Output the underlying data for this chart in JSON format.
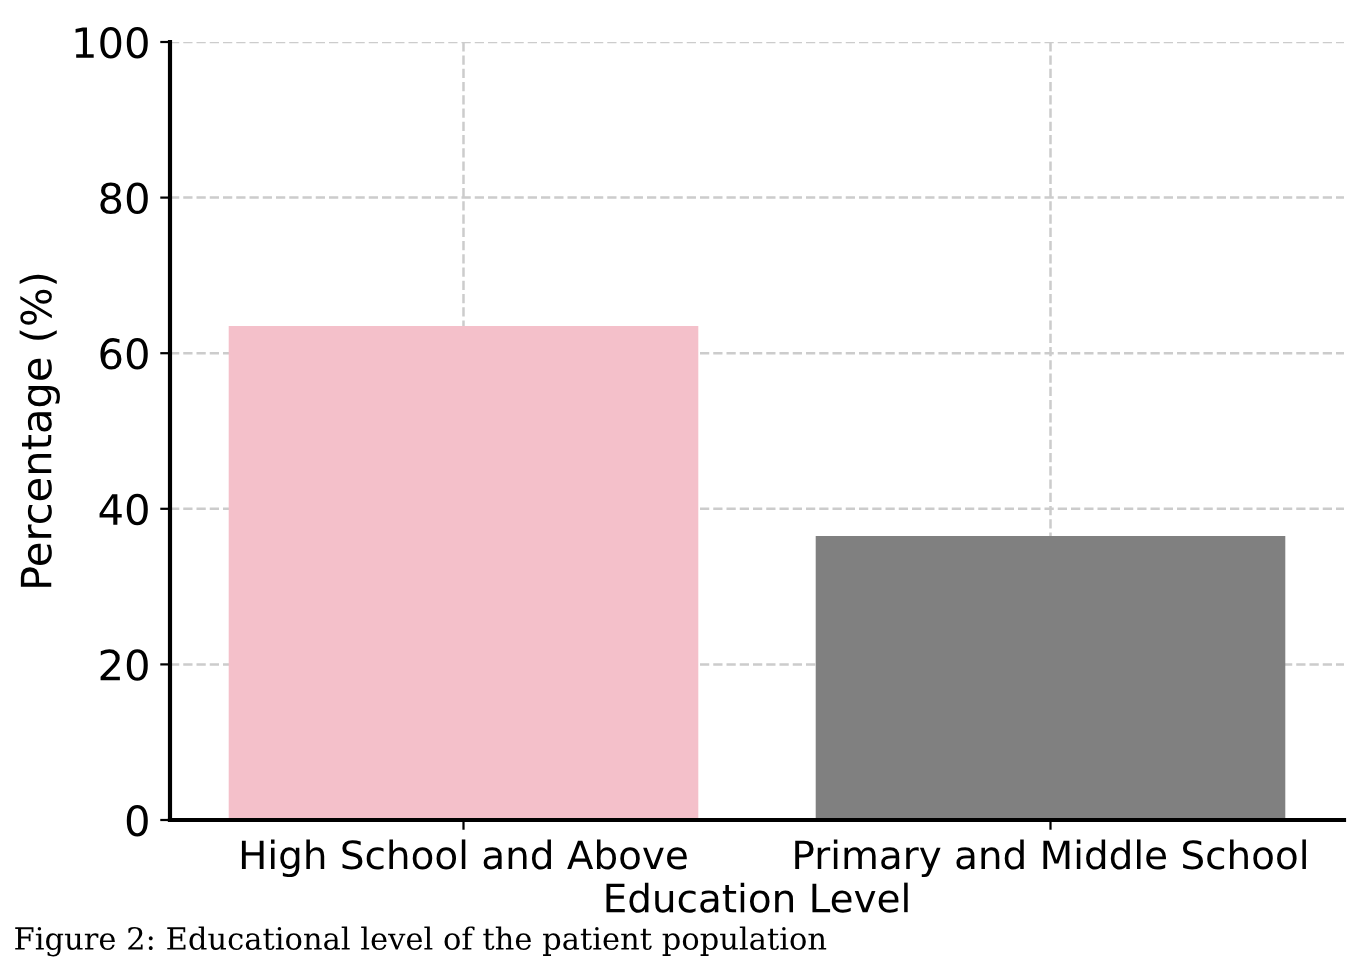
{
  "chart_data": {
    "type": "bar",
    "xlabel": "Education Level",
    "ylabel": "Percentage (%)",
    "categories": [
      "High School and Above",
      "Primary and Middle School"
    ],
    "values": [
      63.5,
      36.5
    ],
    "colors": [
      "#f4c0ca",
      "#808080"
    ],
    "ylim": [
      0,
      100
    ],
    "yticks": [
      0,
      20,
      40,
      60,
      80,
      100
    ],
    "grid": true,
    "line_style": "dashed",
    "annotations": [
      "Figure 2: Educational level of the patient population"
    ]
  }
}
